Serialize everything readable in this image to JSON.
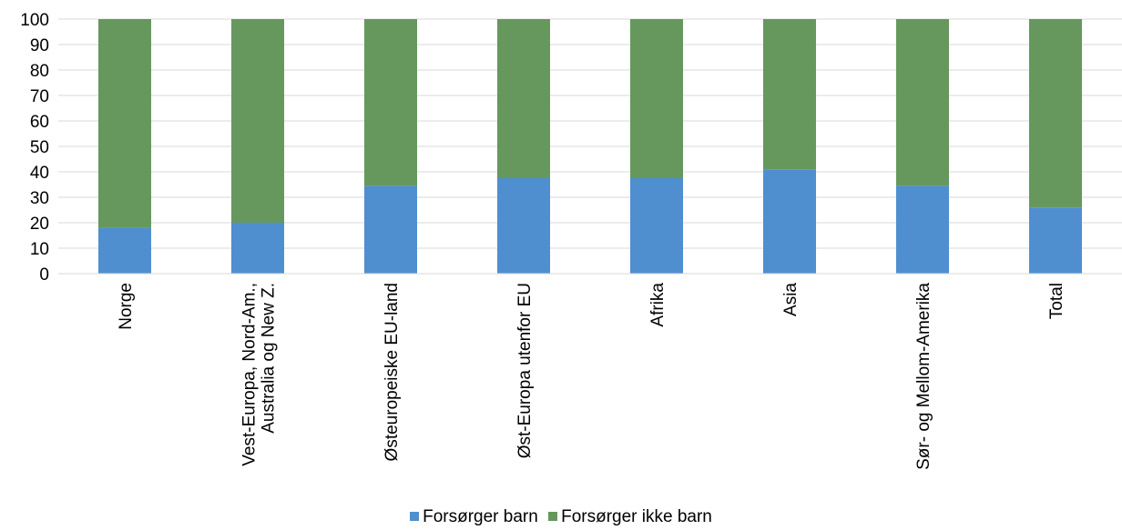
{
  "chart_data": {
    "type": "bar",
    "stacked": true,
    "categories": [
      [
        "Norge"
      ],
      [
        "Vest-Europa, Nord-Am.,",
        "Australia og New Z."
      ],
      [
        "Østeuropeiske EU-land"
      ],
      [
        "Øst-Europa utenfor EU"
      ],
      [
        "Afrika"
      ],
      [
        "Asia"
      ],
      [
        "Sør- og Mellom-Amerika"
      ],
      [
        "Total"
      ]
    ],
    "series": [
      {
        "name": "Forsørger barn",
        "color": "#4f8fcf",
        "values": [
          18,
          20,
          34.5,
          37.5,
          37.5,
          41,
          34.5,
          26
        ]
      },
      {
        "name": "Forsørger ikke barn",
        "color": "#66985e",
        "values": [
          82,
          80,
          65.5,
          62.5,
          62.5,
          59,
          65.5,
          74
        ]
      }
    ],
    "ylim": [
      0,
      100
    ],
    "yticks": [
      "0",
      "10",
      "20",
      "30",
      "40",
      "50",
      "60",
      "70",
      "80",
      "90",
      "100"
    ],
    "grid": true,
    "legend_position": "bottom"
  }
}
